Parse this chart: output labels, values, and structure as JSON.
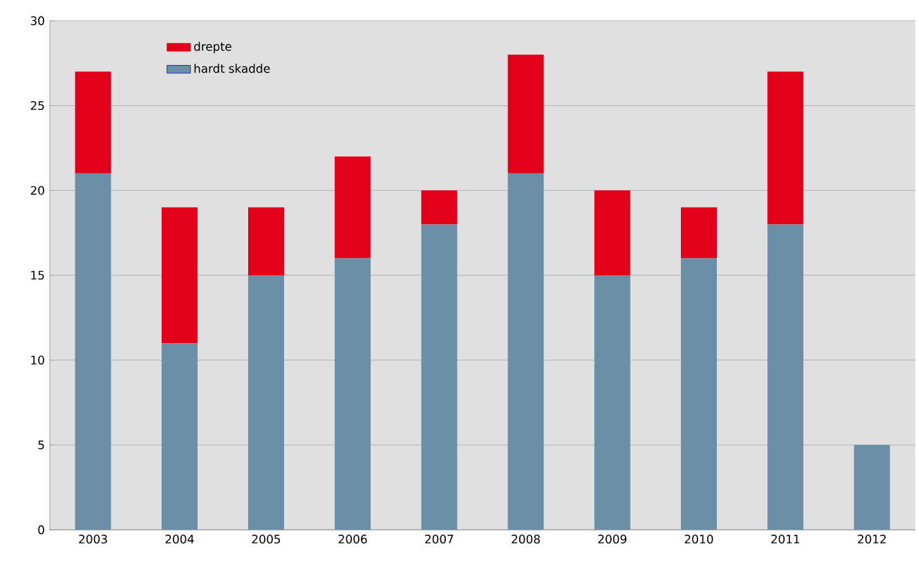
{
  "chart_data": {
    "type": "bar",
    "stacked": true,
    "categories": [
      "2003",
      "2004",
      "2005",
      "2006",
      "2007",
      "2008",
      "2009",
      "2010",
      "2011",
      "2012"
    ],
    "series": [
      {
        "name": "hardt skadde",
        "color": "#6b8fa6",
        "values": [
          21,
          11,
          15,
          16,
          18,
          21,
          15,
          16,
          18,
          5
        ]
      },
      {
        "name": "drepte",
        "color": "#e2001a",
        "values": [
          6,
          8,
          4,
          6,
          2,
          7,
          5,
          3,
          9,
          null
        ]
      }
    ],
    "ylim": [
      0,
      30
    ],
    "yticks": [
      0,
      5,
      10,
      15,
      20,
      25,
      30
    ],
    "grid": "y",
    "legend": "top left"
  }
}
